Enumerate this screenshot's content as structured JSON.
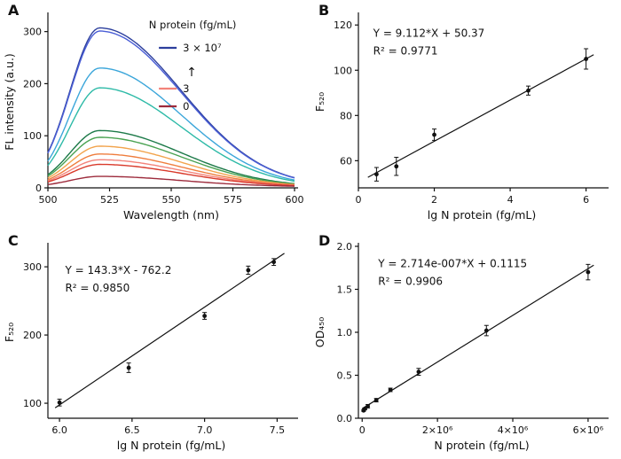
{
  "chart_data": [
    {
      "panel": "A",
      "type": "line",
      "subtype": "spectra",
      "title": "",
      "xlabel": "Wavelength (nm)",
      "ylabel": "FL intensity (a.u.)",
      "xlim": [
        500,
        600
      ],
      "xticks": [
        500,
        525,
        550,
        575,
        600
      ],
      "ylim": [
        0,
        330
      ],
      "yticks": [
        0,
        100,
        200,
        300
      ],
      "peak_nm": 521,
      "sigma_left": 12,
      "sigma_right": 33,
      "series": [
        {
          "peak": 305,
          "color": "#2c3f9d"
        },
        {
          "peak": 299,
          "color": "#4a5ed6"
        },
        {
          "peak": 228,
          "color": "#3ba6da"
        },
        {
          "peak": 190,
          "color": "#2dbaa7"
        },
        {
          "peak": 108,
          "color": "#1d7a49"
        },
        {
          "peak": 95,
          "color": "#49a251"
        },
        {
          "peak": 78,
          "color": "#f2a44d"
        },
        {
          "peak": 63,
          "color": "#ef7d3d"
        },
        {
          "peak": 52,
          "color": "#f3837a"
        },
        {
          "peak": 43,
          "color": "#d93a2b"
        },
        {
          "peak": 20,
          "color": "#9d2b3c"
        }
      ],
      "legend": {
        "title": "N protein (fg/mL)",
        "items": [
          {
            "label": "3 × 10⁷",
            "color": "#2c3f9d"
          },
          {
            "label": "3",
            "color": "#f3837a"
          },
          {
            "label": "0",
            "color": "#9d2b3c"
          }
        ],
        "arrow_icon": "↑"
      }
    },
    {
      "panel": "B",
      "type": "scatter",
      "title": "",
      "xlabel": "lg N protein (fg/mL)",
      "ylabel": "F₅₂₀",
      "xlim": [
        0,
        6.5
      ],
      "xticks": [
        0,
        2,
        4,
        6
      ],
      "ylim": [
        48,
        124
      ],
      "yticks": [
        60,
        80,
        100,
        120
      ],
      "x": [
        0.477,
        1.0,
        2.0,
        4.477,
        6.0
      ],
      "y": [
        54,
        57.5,
        71.5,
        91,
        105
      ],
      "yerr": [
        3,
        4,
        2.5,
        2,
        4.5
      ],
      "fit": {
        "slope": 9.112,
        "intercept": 50.37,
        "x_range": [
          0.25,
          6.2
        ],
        "equation": "Y = 9.112*X + 50.37",
        "r2": "R² = 0.9771"
      },
      "eq_pos": [
        0.06,
        0.12
      ]
    },
    {
      "panel": "C",
      "type": "scatter",
      "title": "",
      "xlabel": "lg N protein (fg/mL)",
      "ylabel": "F₅₂₀",
      "xlim": [
        5.92,
        7.62
      ],
      "xticks": [
        6.0,
        6.5,
        7.0,
        7.5
      ],
      "xtick_labels": [
        "6.0",
        "6.5",
        "7.0",
        "7.5"
      ],
      "ylim": [
        78,
        330
      ],
      "yticks": [
        100,
        200,
        300
      ],
      "x": [
        6.0,
        6.477,
        7.0,
        7.301,
        7.477
      ],
      "y": [
        101,
        152,
        228,
        295,
        307
      ],
      "yerr": [
        5,
        7,
        5,
        6,
        5
      ],
      "fit": {
        "slope": 143.3,
        "intercept": -762.2,
        "x_range": [
          5.97,
          7.55
        ],
        "equation": "Y = 143.3*X - 762.2",
        "r2": "R² = 0.9850"
      },
      "eq_pos": [
        0.07,
        0.16
      ]
    },
    {
      "panel": "D",
      "type": "scatter",
      "title": "",
      "xlabel": "N protein (fg/mL)",
      "ylabel": "OD₄₅₀",
      "xlim": [
        -100000,
        6450000
      ],
      "xticks": [
        0,
        2000000,
        4000000,
        6000000
      ],
      "xtick_labels": [
        "0",
        "2×10⁶",
        "4×10⁶",
        "6×10⁶"
      ],
      "ylim": [
        0,
        2.0
      ],
      "yticks": [
        0,
        0.5,
        1.0,
        1.5,
        2.0
      ],
      "ytick_labels": [
        "0.0",
        "0.5",
        "1.0",
        "1.5",
        "2.0"
      ],
      "x": [
        37500,
        75000,
        150000,
        375000,
        750000,
        1500000,
        3300000,
        6000000
      ],
      "y": [
        0.09,
        0.11,
        0.14,
        0.21,
        0.33,
        0.54,
        1.02,
        1.7
      ],
      "yerr": [
        0.01,
        0.01,
        0.02,
        0.02,
        0.02,
        0.04,
        0.06,
        0.09
      ],
      "fit": {
        "slope": 2.714e-07,
        "intercept": 0.1115,
        "x_range": [
          0,
          6150000
        ],
        "equation": "Y = 2.714e-007*X + 0.1115",
        "r2": "R² = 0.9906"
      },
      "eq_pos": [
        0.08,
        0.12
      ]
    }
  ]
}
